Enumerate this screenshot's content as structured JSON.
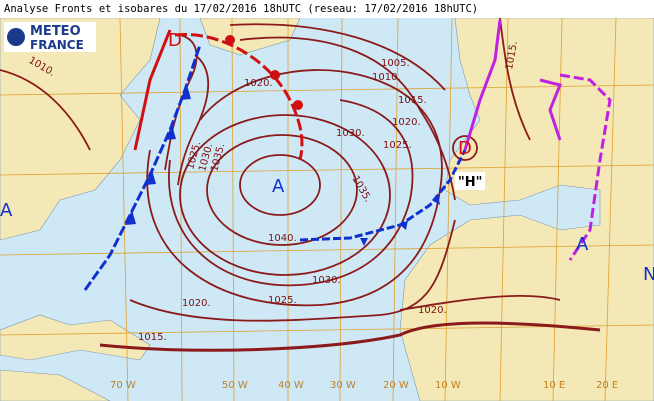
{
  "header": {
    "title": "Analyse Fronts et isobares du 17/02/2016 18hUTC (reseau: 17/02/2016 18hUTC)"
  },
  "logo": {
    "line1": "METEO",
    "line2": "FRANCE"
  },
  "isobar_labels": [
    "1005.",
    "1010.",
    "1015.",
    "1020.",
    "1025.",
    "1030.",
    "1035.",
    "1020.",
    "1025.",
    "1030.",
    "1035.",
    "1040.",
    "1030.",
    "1025.",
    "1020.",
    "1015.",
    "1020.",
    "1015.",
    "1010."
  ],
  "pressure_centers": [
    "A",
    "D",
    "\"H\"",
    "D",
    "A",
    "A",
    "N"
  ],
  "longitude_labels": [
    "70 W",
    "50 W",
    "40 W",
    "30 W",
    "20 W",
    "10 W",
    "10 E",
    "20 E"
  ]
}
